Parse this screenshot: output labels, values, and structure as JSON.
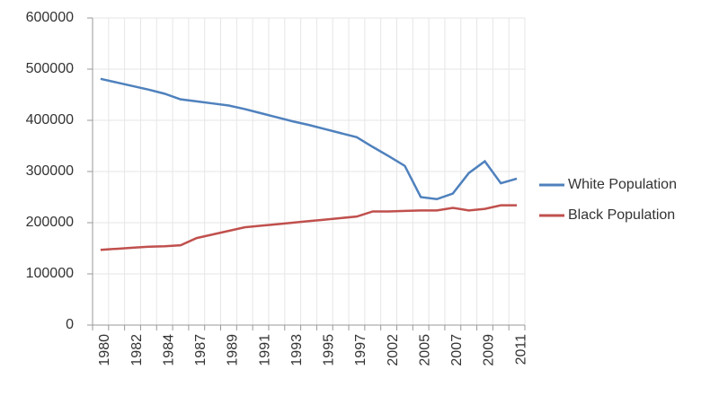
{
  "chart_data": {
    "type": "line",
    "categories": [
      "1980",
      null,
      "1982",
      null,
      "1984",
      null,
      "1987",
      null,
      "1989",
      null,
      "1991",
      null,
      "1993",
      null,
      "1995",
      null,
      "1997",
      null,
      "2002",
      null,
      "2005",
      null,
      "2007",
      null,
      "2009",
      null,
      "2011"
    ],
    "series": [
      {
        "name": "White Population",
        "color": "#4f81bd",
        "values": [
          481000,
          474000,
          467000,
          460000,
          452000,
          441000,
          437000,
          433000,
          429000,
          422000,
          414000,
          406000,
          398000,
          391000,
          383000,
          375000,
          367000,
          348000,
          330000,
          311000,
          250000,
          246000,
          257000,
          297000,
          320000,
          277000,
          286000
        ]
      },
      {
        "name": "Black Population",
        "color": "#c0504d",
        "values": [
          147000,
          149000,
          151000,
          153000,
          154000,
          156000,
          170000,
          177000,
          184000,
          191000,
          194000,
          197000,
          200000,
          203000,
          206000,
          209000,
          212000,
          222000,
          222000,
          223000,
          224000,
          224000,
          229000,
          224000,
          227000,
          234000,
          234000
        ]
      }
    ],
    "ylim": [
      0,
      600000
    ],
    "yticks": [
      0,
      100000,
      200000,
      300000,
      400000,
      500000,
      600000
    ],
    "grid": true,
    "legend": "right"
  }
}
